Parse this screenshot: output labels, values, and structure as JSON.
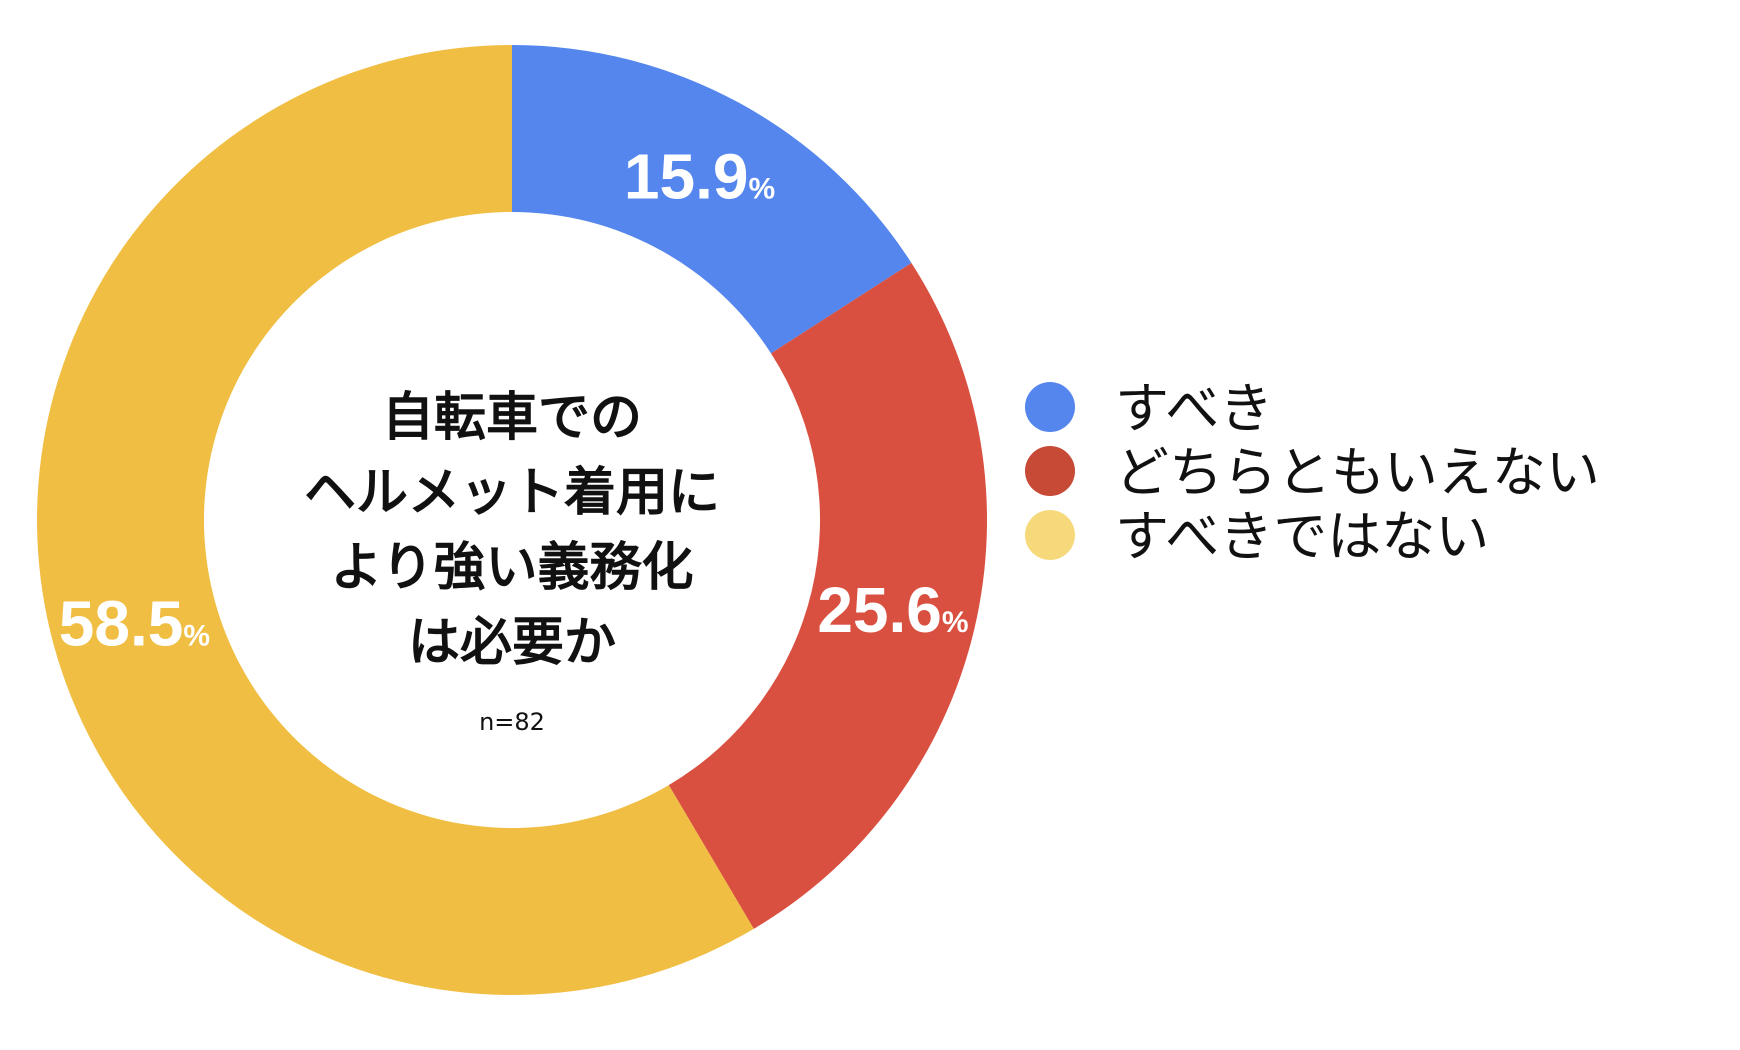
{
  "chart_data": {
    "type": "pie",
    "style": "donut",
    "title": "自転車でのヘルメット着用により強い義務化は必要か",
    "title_lines": [
      "自転車での",
      "ヘルメット着用に",
      "より強い義務化",
      "は必要か"
    ],
    "sample_note": "n=82",
    "unit": "%",
    "slices": [
      {
        "label": "すべき",
        "value": 15.9,
        "value_text": "15.9",
        "color": "#5586EE",
        "legend_color": "#5586EE"
      },
      {
        "label": "どちらともいえない",
        "value": 25.6,
        "value_text": "25.6",
        "color": "#D95040",
        "legend_color": "#C64A36"
      },
      {
        "label": "すべきではない",
        "value": 58.5,
        "value_text": "58.5",
        "color": "#F0BE42",
        "legend_color": "#F6D97A"
      }
    ],
    "legend_position": "right"
  }
}
